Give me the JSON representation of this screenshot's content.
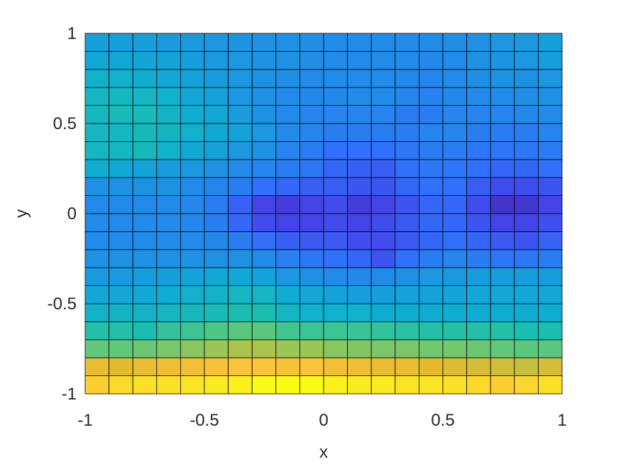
{
  "chart_data": {
    "type": "pcolor",
    "xlabel": "x",
    "ylabel": "y",
    "x": [
      -1,
      -0.9,
      -0.8,
      -0.7,
      -0.6,
      -0.5,
      -0.4,
      -0.3,
      -0.2,
      -0.1,
      0,
      0.1,
      0.2,
      0.3,
      0.4,
      0.5,
      0.6,
      0.7,
      0.8,
      0.9,
      1
    ],
    "y": [
      -1,
      -0.9,
      -0.8,
      -0.7,
      -0.6,
      -0.5,
      -0.4,
      -0.3,
      -0.2,
      -0.1,
      0,
      0.1,
      0.2,
      0.3,
      0.4,
      0.5,
      0.6,
      0.7,
      0.8,
      0.9,
      1
    ],
    "values": [
      [
        0.92,
        0.94,
        0.95,
        0.95,
        0.96,
        0.97,
        0.98,
        1.0,
        1.0,
        1.0,
        0.98,
        0.97,
        0.97,
        0.96,
        0.96,
        0.95,
        0.94,
        0.92,
        0.93,
        0.95
      ],
      [
        0.82,
        0.8,
        0.82,
        0.84,
        0.86,
        0.88,
        0.9,
        0.9,
        0.88,
        0.9,
        0.86,
        0.84,
        0.82,
        0.82,
        0.8,
        0.79,
        0.78,
        0.77,
        0.76,
        0.78
      ],
      [
        0.63,
        0.63,
        0.64,
        0.66,
        0.68,
        0.7,
        0.72,
        0.72,
        0.7,
        0.7,
        0.68,
        0.67,
        0.66,
        0.66,
        0.65,
        0.65,
        0.64,
        0.63,
        0.62,
        0.62
      ],
      [
        0.52,
        0.52,
        0.5,
        0.55,
        0.57,
        0.6,
        0.62,
        0.62,
        0.58,
        0.57,
        0.57,
        0.56,
        0.55,
        0.53,
        0.52,
        0.52,
        0.52,
        0.52,
        0.5,
        0.5
      ],
      [
        0.43,
        0.44,
        0.44,
        0.45,
        0.47,
        0.48,
        0.5,
        0.5,
        0.45,
        0.42,
        0.42,
        0.42,
        0.4,
        0.4,
        0.4,
        0.4,
        0.4,
        0.4,
        0.4,
        0.4
      ],
      [
        0.38,
        0.38,
        0.38,
        0.4,
        0.42,
        0.43,
        0.45,
        0.45,
        0.4,
        0.38,
        0.36,
        0.35,
        0.35,
        0.36,
        0.36,
        0.37,
        0.38,
        0.38,
        0.38,
        0.38
      ],
      [
        0.33,
        0.33,
        0.34,
        0.35,
        0.36,
        0.38,
        0.38,
        0.36,
        0.32,
        0.3,
        0.28,
        0.27,
        0.28,
        0.3,
        0.32,
        0.33,
        0.34,
        0.34,
        0.34,
        0.34
      ],
      [
        0.3,
        0.3,
        0.3,
        0.3,
        0.3,
        0.3,
        0.3,
        0.28,
        0.25,
        0.22,
        0.2,
        0.18,
        0.14,
        0.2,
        0.24,
        0.26,
        0.24,
        0.22,
        0.22,
        0.24
      ],
      [
        0.28,
        0.28,
        0.28,
        0.28,
        0.28,
        0.27,
        0.24,
        0.2,
        0.16,
        0.15,
        0.15,
        0.12,
        0.12,
        0.15,
        0.18,
        0.2,
        0.18,
        0.15,
        0.14,
        0.17
      ],
      [
        0.28,
        0.28,
        0.28,
        0.28,
        0.27,
        0.24,
        0.18,
        0.12,
        0.1,
        0.1,
        0.12,
        0.1,
        0.12,
        0.15,
        0.18,
        0.18,
        0.14,
        0.1,
        0.1,
        0.13
      ],
      [
        0.28,
        0.28,
        0.28,
        0.28,
        0.27,
        0.24,
        0.17,
        0.1,
        0.08,
        0.1,
        0.12,
        0.08,
        0.1,
        0.14,
        0.18,
        0.18,
        0.12,
        0.05,
        0.06,
        0.1
      ],
      [
        0.3,
        0.3,
        0.3,
        0.3,
        0.28,
        0.26,
        0.24,
        0.2,
        0.18,
        0.16,
        0.16,
        0.14,
        0.14,
        0.18,
        0.2,
        0.2,
        0.16,
        0.12,
        0.12,
        0.14
      ],
      [
        0.4,
        0.38,
        0.36,
        0.34,
        0.33,
        0.3,
        0.28,
        0.26,
        0.24,
        0.22,
        0.18,
        0.16,
        0.16,
        0.2,
        0.22,
        0.22,
        0.2,
        0.18,
        0.18,
        0.2
      ],
      [
        0.45,
        0.45,
        0.47,
        0.42,
        0.38,
        0.36,
        0.32,
        0.3,
        0.26,
        0.24,
        0.2,
        0.2,
        0.2,
        0.22,
        0.24,
        0.24,
        0.22,
        0.22,
        0.22,
        0.24
      ],
      [
        0.45,
        0.45,
        0.47,
        0.44,
        0.42,
        0.38,
        0.36,
        0.32,
        0.28,
        0.26,
        0.24,
        0.24,
        0.24,
        0.24,
        0.26,
        0.26,
        0.24,
        0.24,
        0.24,
        0.26
      ],
      [
        0.46,
        0.48,
        0.48,
        0.44,
        0.4,
        0.38,
        0.34,
        0.3,
        0.28,
        0.26,
        0.26,
        0.26,
        0.26,
        0.24,
        0.24,
        0.26,
        0.26,
        0.26,
        0.27,
        0.28
      ],
      [
        0.45,
        0.46,
        0.45,
        0.42,
        0.38,
        0.36,
        0.32,
        0.3,
        0.28,
        0.27,
        0.27,
        0.28,
        0.28,
        0.26,
        0.25,
        0.27,
        0.28,
        0.28,
        0.29,
        0.3
      ],
      [
        0.42,
        0.42,
        0.4,
        0.38,
        0.36,
        0.34,
        0.32,
        0.3,
        0.29,
        0.28,
        0.28,
        0.28,
        0.28,
        0.27,
        0.26,
        0.28,
        0.29,
        0.3,
        0.3,
        0.32
      ],
      [
        0.38,
        0.38,
        0.37,
        0.36,
        0.34,
        0.33,
        0.32,
        0.3,
        0.3,
        0.29,
        0.28,
        0.28,
        0.28,
        0.28,
        0.27,
        0.28,
        0.3,
        0.31,
        0.32,
        0.34
      ],
      [
        0.35,
        0.35,
        0.35,
        0.34,
        0.33,
        0.32,
        0.31,
        0.3,
        0.3,
        0.29,
        0.28,
        0.28,
        0.28,
        0.28,
        0.28,
        0.29,
        0.3,
        0.32,
        0.33,
        0.35
      ]
    ],
    "clim": [
      0,
      1
    ],
    "colormap": [
      "#3e26a8",
      "#4443e8",
      "#3070fb",
      "#1f91e3",
      "#0fadd2",
      "#1bbdb0",
      "#4cc788",
      "#99c655",
      "#e4bb2f",
      "#fcc43b",
      "#f9fb15"
    ],
    "xlim": [
      -1,
      1
    ],
    "ylim": [
      -1,
      1
    ],
    "xticks": [
      -1,
      -0.5,
      0,
      0.5,
      1
    ],
    "yticks": [
      -1,
      -0.5,
      0,
      0.5,
      1
    ]
  }
}
